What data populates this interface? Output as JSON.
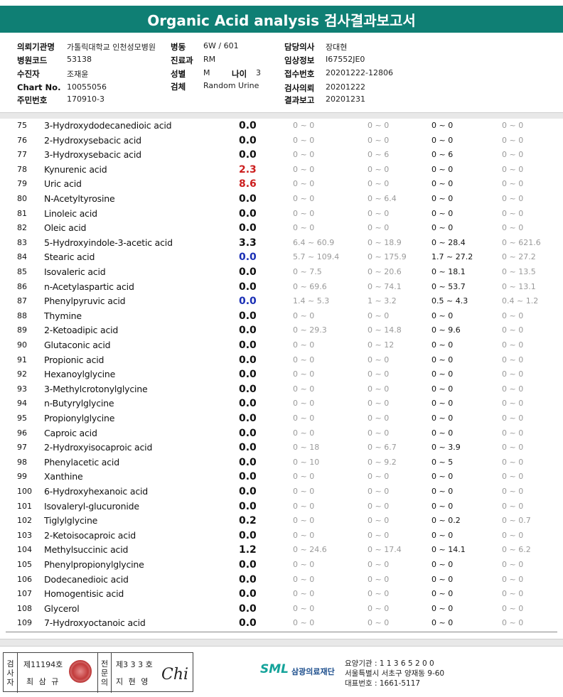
{
  "header": {
    "title": "Organic Acid analysis 검사결과보고서"
  },
  "info": {
    "institution_label": "의뢰기관명",
    "institution_value": "가톨릭대학교 인천성모병원",
    "ward_label": "병동",
    "ward_value": "6W / 601",
    "doctor_label": "담당의사",
    "doctor_value": "장대현",
    "hospital_code_label": "병원코드",
    "hospital_code_value": "53138",
    "dept_label": "진료과",
    "dept_value": "RM",
    "clinical_label": "임상정보",
    "clinical_value": "I67552JE0",
    "examinee_label": "수진자",
    "examinee_value": "조재윤",
    "sex_label": "성별",
    "sex_value": "M",
    "age_label": "나이",
    "age_value": "3",
    "receipt_label": "접수번호",
    "receipt_value": "20201222-12806",
    "chart_label": "Chart No.",
    "chart_value": "10055056",
    "specimen_label": "검체",
    "specimen_value": "Random Urine",
    "request_label": "검사의뢰",
    "request_value": "20201222",
    "id_label": "주민번호",
    "id_value": "170910-3",
    "report_label": "결과보고",
    "report_value": "20201231"
  },
  "rows": [
    {
      "no": "75",
      "name": "3-Hydroxydodecanedioic acid",
      "result": "0.0",
      "flag": "",
      "r1": "0 ~ 0",
      "r2": "0 ~ 0",
      "r3": "0 ~ 0",
      "r4": "0 ~ 0"
    },
    {
      "no": "76",
      "name": "2-Hydroxysebacic acid",
      "result": "0.0",
      "flag": "",
      "r1": "0 ~ 0",
      "r2": "0 ~ 0",
      "r3": "0 ~ 0",
      "r4": "0 ~ 0"
    },
    {
      "no": "77",
      "name": "3-Hydroxysebacic acid",
      "result": "0.0",
      "flag": "",
      "r1": "0 ~ 0",
      "r2": "0 ~ 6",
      "r3": "0 ~ 6",
      "r4": "0 ~ 0"
    },
    {
      "no": "78",
      "name": "Kynurenic acid",
      "result": "2.3",
      "flag": "high",
      "r1": "0 ~ 0",
      "r2": "0 ~ 0",
      "r3": "0 ~ 0",
      "r4": "0 ~ 0"
    },
    {
      "no": "79",
      "name": "Uric acid",
      "result": "8.6",
      "flag": "high",
      "r1": "0 ~ 0",
      "r2": "0 ~ 0",
      "r3": "0 ~ 0",
      "r4": "0 ~ 0"
    },
    {
      "no": "80",
      "name": "N-Acetyltyrosine",
      "result": "0.0",
      "flag": "",
      "r1": "0 ~ 0",
      "r2": "0 ~ 6.4",
      "r3": "0 ~ 0",
      "r4": "0 ~ 0"
    },
    {
      "no": "81",
      "name": "Linoleic acid",
      "result": "0.0",
      "flag": "",
      "r1": "0 ~ 0",
      "r2": "0 ~ 0",
      "r3": "0 ~ 0",
      "r4": "0 ~ 0"
    },
    {
      "no": "82",
      "name": "Oleic acid",
      "result": "0.0",
      "flag": "",
      "r1": "0 ~ 0",
      "r2": "0 ~ 0",
      "r3": "0 ~ 0",
      "r4": "0 ~ 0"
    },
    {
      "no": "83",
      "name": "5-Hydroxyindole-3-acetic acid",
      "result": "3.3",
      "flag": "",
      "r1": "6.4 ~ 60.9",
      "r2": "0 ~ 18.9",
      "r3": "0 ~ 28.4",
      "r4": "0 ~ 621.6"
    },
    {
      "no": "84",
      "name": "Stearic acid",
      "result": "0.0",
      "flag": "low",
      "r1": "5.7 ~ 109.4",
      "r2": "0 ~ 175.9",
      "r3": "1.7 ~ 27.2",
      "r4": "0 ~ 27.2"
    },
    {
      "no": "85",
      "name": "Isovaleric acid",
      "result": "0.0",
      "flag": "",
      "r1": "0 ~ 7.5",
      "r2": "0 ~ 20.6",
      "r3": "0 ~ 18.1",
      "r4": "0 ~ 13.5"
    },
    {
      "no": "86",
      "name": "n-Acetylaspartic acid",
      "result": "0.0",
      "flag": "",
      "r1": "0 ~ 69.6",
      "r2": "0 ~ 74.1",
      "r3": "0 ~ 53.7",
      "r4": "0 ~ 13.1"
    },
    {
      "no": "87",
      "name": "Phenylpyruvic acid",
      "result": "0.0",
      "flag": "low",
      "r1": "1.4 ~ 5.3",
      "r2": "1 ~ 3.2",
      "r3": "0.5 ~ 4.3",
      "r4": "0.4 ~ 1.2"
    },
    {
      "no": "88",
      "name": "Thymine",
      "result": "0.0",
      "flag": "",
      "r1": "0 ~ 0",
      "r2": "0 ~ 0",
      "r3": "0 ~ 0",
      "r4": "0 ~ 0"
    },
    {
      "no": "89",
      "name": "2-Ketoadipic acid",
      "result": "0.0",
      "flag": "",
      "r1": "0 ~ 29.3",
      "r2": "0 ~ 14.8",
      "r3": "0 ~ 9.6",
      "r4": "0 ~ 0"
    },
    {
      "no": "90",
      "name": "Glutaconic acid",
      "result": "0.0",
      "flag": "",
      "r1": "0 ~ 0",
      "r2": "0 ~ 12",
      "r3": "0 ~ 0",
      "r4": "0 ~ 0"
    },
    {
      "no": "91",
      "name": "Propionic acid",
      "result": "0.0",
      "flag": "",
      "r1": "0 ~ 0",
      "r2": "0 ~ 0",
      "r3": "0 ~ 0",
      "r4": "0 ~ 0"
    },
    {
      "no": "92",
      "name": "Hexanoylglycine",
      "result": "0.0",
      "flag": "",
      "r1": "0 ~ 0",
      "r2": "0 ~ 0",
      "r3": "0 ~ 0",
      "r4": "0 ~ 0"
    },
    {
      "no": "93",
      "name": "3-Methylcrotonylglycine",
      "result": "0.0",
      "flag": "",
      "r1": "0 ~ 0",
      "r2": "0 ~ 0",
      "r3": "0 ~ 0",
      "r4": "0 ~ 0"
    },
    {
      "no": "94",
      "name": "n-Butyrylglycine",
      "result": "0.0",
      "flag": "",
      "r1": "0 ~ 0",
      "r2": "0 ~ 0",
      "r3": "0 ~ 0",
      "r4": "0 ~ 0"
    },
    {
      "no": "95",
      "name": "Propionylglycine",
      "result": "0.0",
      "flag": "",
      "r1": "0 ~ 0",
      "r2": "0 ~ 0",
      "r3": "0 ~ 0",
      "r4": "0 ~ 0"
    },
    {
      "no": "96",
      "name": "Caproic acid",
      "result": "0.0",
      "flag": "",
      "r1": "0 ~ 0",
      "r2": "0 ~ 0",
      "r3": "0 ~ 0",
      "r4": "0 ~ 0"
    },
    {
      "no": "97",
      "name": "2-Hydroxyisocaproic acid",
      "result": "0.0",
      "flag": "",
      "r1": "0 ~ 18",
      "r2": "0 ~ 6.7",
      "r3": "0 ~ 3.9",
      "r4": "0 ~ 0"
    },
    {
      "no": "98",
      "name": "Phenylacetic acid",
      "result": "0.0",
      "flag": "",
      "r1": "0 ~ 10",
      "r2": "0 ~ 9.2",
      "r3": "0 ~ 5",
      "r4": "0 ~ 0"
    },
    {
      "no": "99",
      "name": "Xanthine",
      "result": "0.0",
      "flag": "",
      "r1": "0 ~ 0",
      "r2": "0 ~ 0",
      "r3": "0 ~ 0",
      "r4": "0 ~ 0"
    },
    {
      "no": "100",
      "name": "6-Hydroxyhexanoic acid",
      "result": "0.0",
      "flag": "",
      "r1": "0 ~ 0",
      "r2": "0 ~ 0",
      "r3": "0 ~ 0",
      "r4": "0 ~ 0"
    },
    {
      "no": "101",
      "name": "Isovaleryl-glucuronide",
      "result": "0.0",
      "flag": "",
      "r1": "0 ~ 0",
      "r2": "0 ~ 0",
      "r3": "0 ~ 0",
      "r4": "0 ~ 0"
    },
    {
      "no": "102",
      "name": "Tiglylglycine",
      "result": "0.2",
      "flag": "",
      "r1": "0 ~ 0",
      "r2": "0 ~ 0",
      "r3": "0 ~ 0.2",
      "r4": "0 ~ 0.7"
    },
    {
      "no": "103",
      "name": "2-Ketoisocaproic acid",
      "result": "0.0",
      "flag": "",
      "r1": "0 ~ 0",
      "r2": "0 ~ 0",
      "r3": "0 ~ 0",
      "r4": "0 ~ 0"
    },
    {
      "no": "104",
      "name": "Methylsuccinic acid",
      "result": "1.2",
      "flag": "",
      "r1": "0 ~ 24.6",
      "r2": "0 ~ 17.4",
      "r3": "0 ~ 14.1",
      "r4": "0 ~ 6.2"
    },
    {
      "no": "105",
      "name": "Phenylpropionylglycine",
      "result": "0.0",
      "flag": "",
      "r1": "0 ~ 0",
      "r2": "0 ~ 0",
      "r3": "0 ~ 0",
      "r4": "0 ~ 0"
    },
    {
      "no": "106",
      "name": "Dodecanedioic acid",
      "result": "0.0",
      "flag": "",
      "r1": "0 ~ 0",
      "r2": "0 ~ 0",
      "r3": "0 ~ 0",
      "r4": "0 ~ 0"
    },
    {
      "no": "107",
      "name": "Homogentisic acid",
      "result": "0.0",
      "flag": "",
      "r1": "0 ~ 0",
      "r2": "0 ~ 0",
      "r3": "0 ~ 0",
      "r4": "0 ~ 0"
    },
    {
      "no": "108",
      "name": "Glycerol",
      "result": "0.0",
      "flag": "",
      "r1": "0 ~ 0",
      "r2": "0 ~ 0",
      "r3": "0 ~ 0",
      "r4": "0 ~ 0"
    },
    {
      "no": "109",
      "name": "7-Hydroxyoctanoic acid",
      "result": "0.0",
      "flag": "",
      "r1": "0 ~ 0",
      "r2": "0 ~ 0",
      "r3": "0 ~ 0",
      "r4": "0 ~ 0"
    }
  ],
  "colors": {
    "title_bg": "#0f7f74",
    "high": "#cc1f1f",
    "low": "#1a2fb5",
    "range_grey": "#9a9a9a"
  },
  "footer": {
    "examiner_vert": "검사자",
    "examiner_no": "제11194호",
    "examiner_name": "최 삼 규",
    "specialist_vert": "전문의",
    "specialist_no": "제3 3 3 호",
    "specialist_name": "지 현 영",
    "signature": "Chi",
    "logo_text": "SML",
    "org_name": "삼광의료재단",
    "addr_line1": "요양기관 : 1 1 3 6 5 2 0 0",
    "addr_line2": "서울특별시 서초구 양재동 9-60",
    "addr_line3": "대표번호 : 1661-5117"
  }
}
